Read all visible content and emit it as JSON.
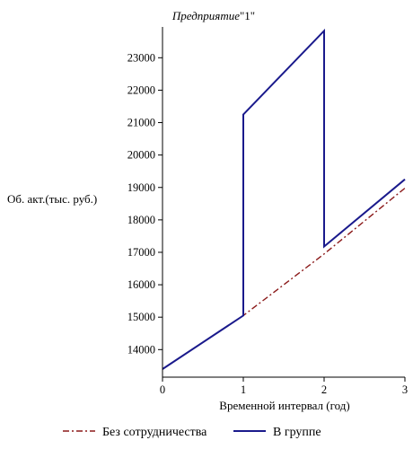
{
  "chart_data": {
    "type": "line",
    "title": "Предприятие",
    "title_suffix": "\"1\"",
    "xlabel": "Временной интервал (год)",
    "ylabel": "Об. акт.(тыс. руб.)",
    "xlim": [
      0,
      3
    ],
    "ylim": [
      13150,
      23950
    ],
    "x_ticks": [
      0,
      1,
      2,
      3
    ],
    "y_ticks": [
      14000,
      15000,
      16000,
      17000,
      18000,
      19000,
      20000,
      21000,
      22000,
      23000
    ],
    "grid": false,
    "legend_position": "bottom",
    "series": [
      {
        "name": "Без сотрудничества",
        "color": "#8b1a1a",
        "style": "dash-dot",
        "points": [
          [
            0,
            13400
          ],
          [
            1,
            15050
          ],
          [
            2,
            16950
          ],
          [
            3,
            18980
          ]
        ]
      },
      {
        "name": "В группе",
        "color": "#1a1a8c",
        "style": "solid",
        "points": [
          [
            0,
            13400
          ],
          [
            1,
            15050
          ],
          [
            1,
            21250
          ],
          [
            2,
            23830
          ],
          [
            2,
            17180
          ],
          [
            3,
            19250
          ]
        ]
      }
    ]
  }
}
